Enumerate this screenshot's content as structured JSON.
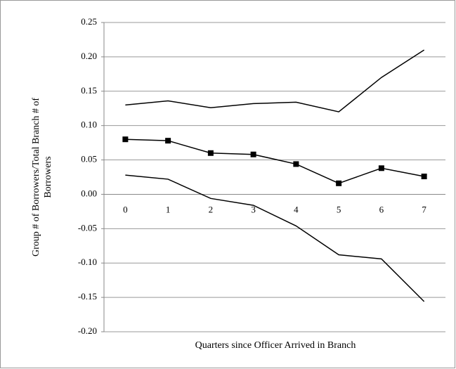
{
  "chart_data": {
    "type": "line",
    "x_label": "Quarters since Officer Arrived in Branch",
    "y_label": "Group # of Borrowers/Total Branch # of Borrowers",
    "categories": [
      "0",
      "1",
      "2",
      "3",
      "4",
      "5",
      "6",
      "7"
    ],
    "series": [
      {
        "color": "#000000",
        "values": [
          0.13,
          0.136,
          0.126,
          0.132,
          0.134,
          0.12,
          0.17,
          0.21
        ]
      },
      {
        "color": "#000000",
        "marker": "square",
        "values": [
          0.08,
          0.078,
          0.06,
          0.058,
          0.044,
          0.016,
          0.038,
          0.026
        ]
      },
      {
        "color": "#000000",
        "values": [
          0.028,
          0.022,
          -0.006,
          -0.016,
          -0.046,
          -0.088,
          -0.094,
          -0.156
        ]
      }
    ],
    "ylim": [
      -0.2,
      0.25
    ],
    "yticks": [
      {
        "value": -0.2,
        "label": "-0.20"
      },
      -0.15,
      {
        "value": -0.1,
        "label": "-0.10"
      },
      -0.05,
      {
        "value": 0,
        "label": "0.00"
      },
      0.05,
      {
        "value": 0.1,
        "label": "0.10"
      },
      0.15,
      {
        "value": 0.2,
        "label": "0.20"
      },
      0.25
    ],
    "grid": true
  }
}
